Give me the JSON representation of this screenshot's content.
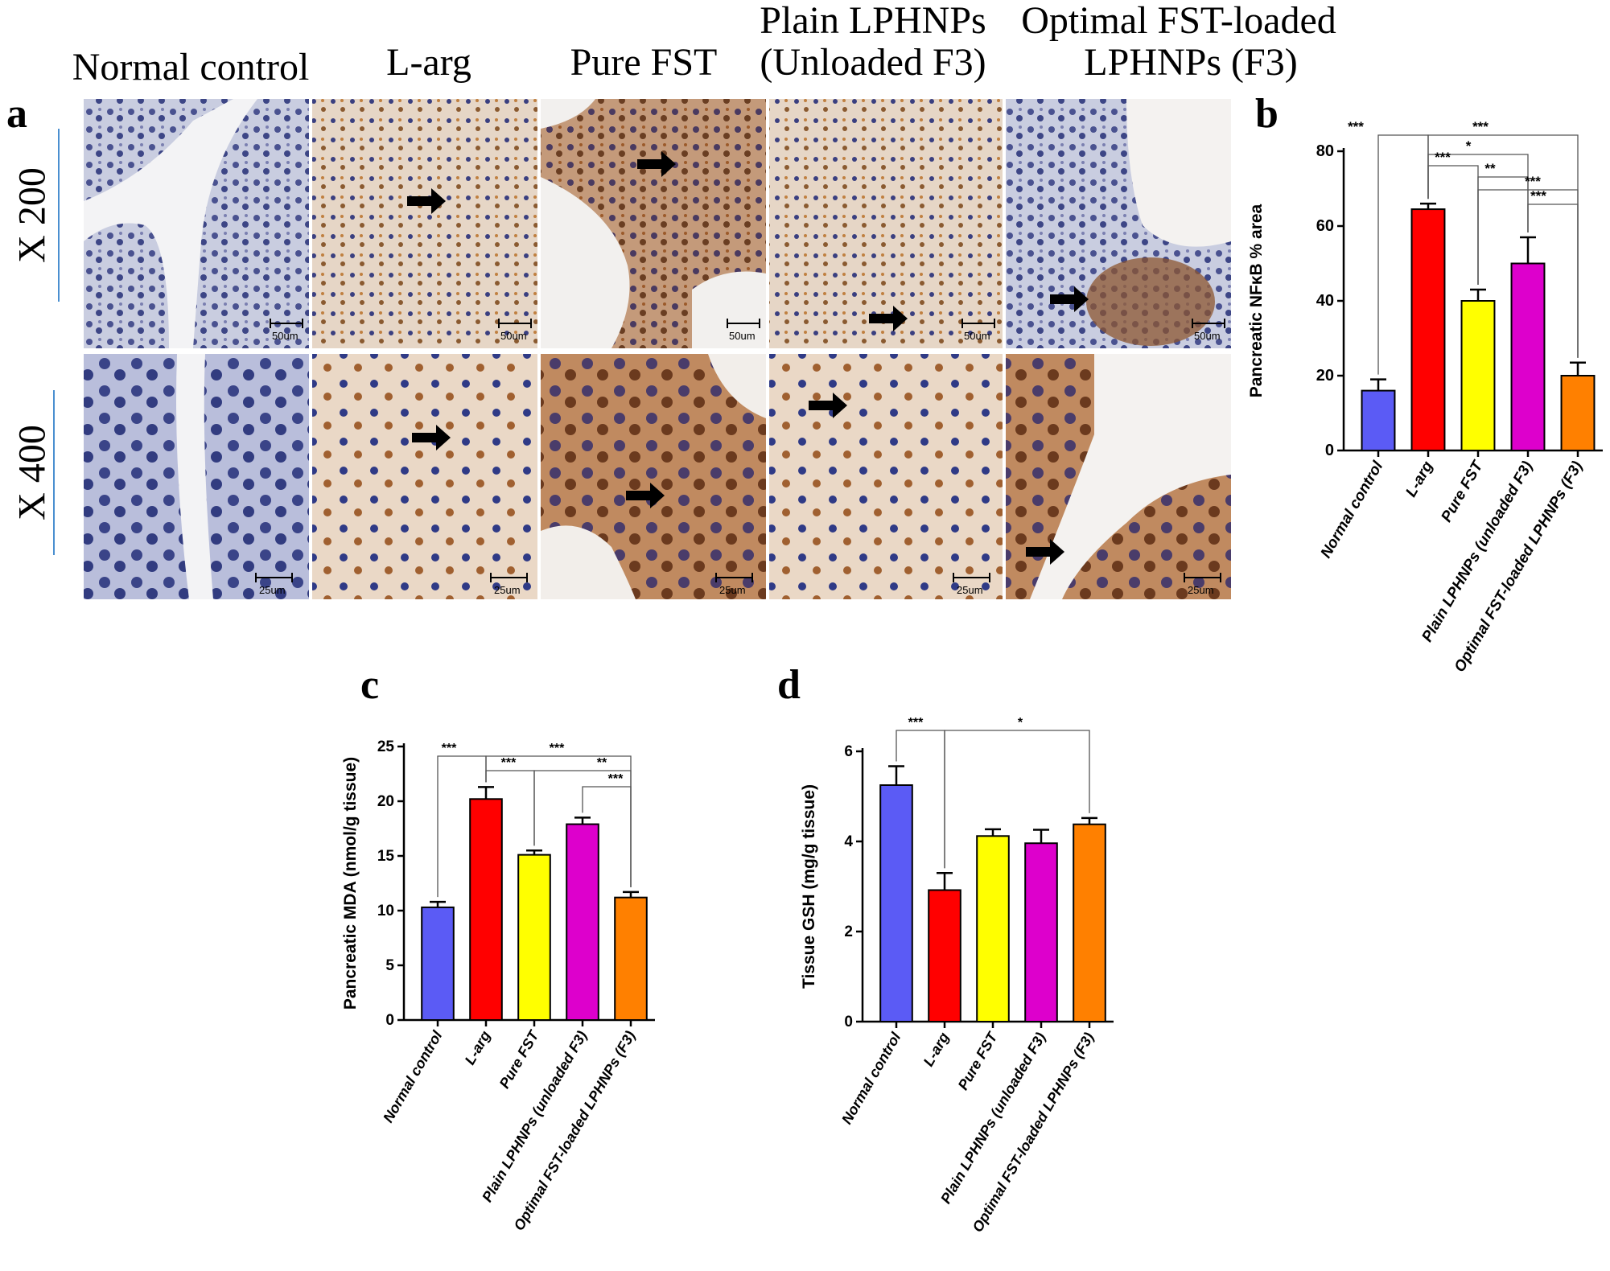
{
  "columns": [
    "Normal control",
    "L-arg",
    "Pure FST",
    "Plain LPHNPs (Unloaded F3)",
    "Optimal FST-loaded LPHNPs (F3)"
  ],
  "column_lines": [
    [
      "Normal control"
    ],
    [
      "L-arg"
    ],
    [
      "Pure FST"
    ],
    [
      "Plain LPHNPs",
      "(Unloaded F3)"
    ],
    [
      "Optimal FST-loaded",
      "LPHNPs (F3)"
    ]
  ],
  "panels": {
    "a": "a",
    "b": "b",
    "c": "c",
    "d": "d"
  },
  "magnifications": {
    "row1": "X 200",
    "row2": "X 400"
  },
  "scale_bars": {
    "row1": "50um",
    "row2": "25um"
  },
  "colors": {
    "normal": "#5b5bf5",
    "larg": "#ff0000",
    "pure": "#ffff00",
    "plain": "#dd00cc",
    "optimal": "#ff8000"
  },
  "chart_data": [
    {
      "id": "b",
      "type": "bar",
      "categories": [
        "Normal control",
        "L-arg",
        "Pure FST",
        "Plain LPHNPs (unloaded F3)",
        "Optimal FST-loaded LPHNPs (F3)"
      ],
      "values": [
        16,
        64.5,
        40,
        50,
        20
      ],
      "errors": [
        3,
        1.5,
        3,
        7,
        3.5
      ],
      "ylabel": "Pancreatic NFκB % area",
      "ylim": [
        0,
        80
      ],
      "yticks": [
        0,
        20,
        40,
        60,
        80
      ],
      "significance": [
        {
          "from": 0,
          "to": 1,
          "label": "***"
        },
        {
          "from": 1,
          "to": 4,
          "label": "***"
        },
        {
          "from": 1,
          "to": 3,
          "label": "*"
        },
        {
          "from": 1,
          "to": 2,
          "label": "***"
        },
        {
          "from": 2,
          "to": 3,
          "label": "**"
        },
        {
          "from": 2,
          "to": 4,
          "label": "***"
        },
        {
          "from": 3,
          "to": 4,
          "label": "***"
        }
      ]
    },
    {
      "id": "c",
      "type": "bar",
      "categories": [
        "Normal control",
        "L-arg",
        "Pure FST",
        "Plain LPHNPs (unloaded F3)",
        "Optimal FST-loaded LPHNPs (F3)"
      ],
      "values": [
        10.3,
        20.2,
        15.1,
        17.9,
        11.2
      ],
      "errors": [
        0.5,
        1.1,
        0.4,
        0.6,
        0.5
      ],
      "ylabel": "Pancreatic MDA (nmol/g tissue)",
      "ylim": [
        0,
        25
      ],
      "yticks": [
        0,
        5,
        10,
        15,
        20,
        25
      ],
      "significance": [
        {
          "from": 0,
          "to": 1,
          "label": "***"
        },
        {
          "from": 1,
          "to": 4,
          "label": "***"
        },
        {
          "from": 1,
          "to": 2,
          "label": "***"
        },
        {
          "from": 2,
          "to": 4,
          "label": "**"
        },
        {
          "from": 3,
          "to": 4,
          "label": "***"
        }
      ]
    },
    {
      "id": "d",
      "type": "bar",
      "categories": [
        "Normal control",
        "L-arg",
        "Pure FST",
        "Plain LPHNPs (unloaded F3)",
        "Optimal FST-loaded LPHNPs (F3)"
      ],
      "values": [
        5.25,
        2.92,
        4.12,
        3.96,
        4.38
      ],
      "errors": [
        0.42,
        0.38,
        0.15,
        0.3,
        0.14
      ],
      "ylabel": "Tissue GSH (mg/g tissue)",
      "ylim": [
        0,
        6
      ],
      "yticks": [
        0,
        2,
        4,
        6
      ],
      "significance": [
        {
          "from": 0,
          "to": 1,
          "label": "***"
        },
        {
          "from": 1,
          "to": 4,
          "label": "*"
        }
      ]
    }
  ]
}
